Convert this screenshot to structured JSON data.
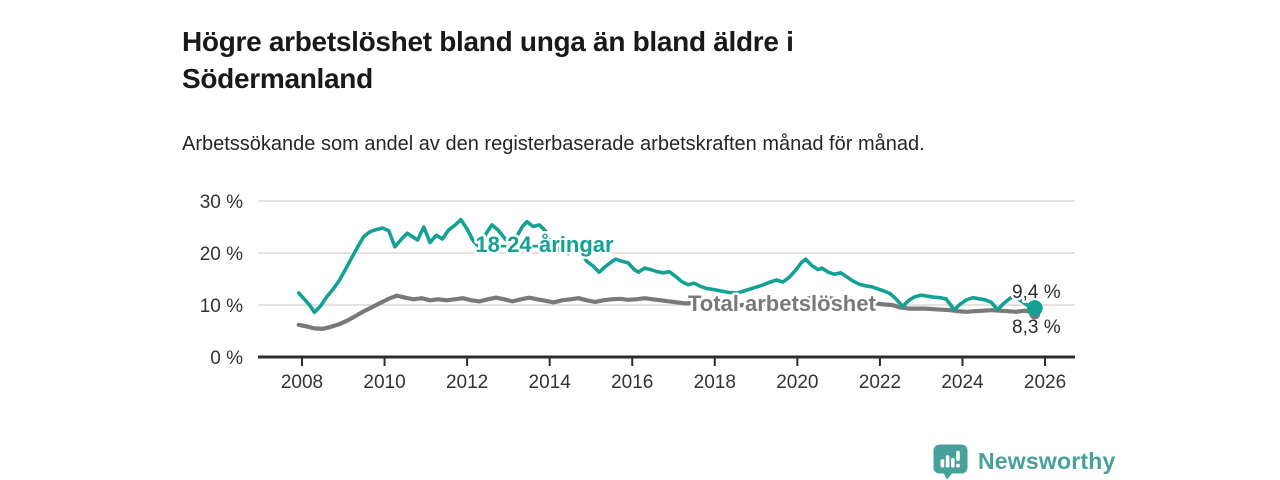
{
  "header": {
    "title": "Högre arbetslöshet bland unga än bland äldre i Södermanland",
    "subtitle": "Arbetssökande som andel av den registerbaserade arbetskraften månad för månad."
  },
  "chart_data": {
    "type": "line",
    "title": "Högre arbetslöshet bland unga än bland äldre i Södermanland",
    "xlabel": "",
    "ylabel": "",
    "grid": "horizontal-only",
    "x_axis": {
      "range": [
        2007.9,
        2026.7
      ],
      "ticks": [
        {
          "v": 2008,
          "label": "2008"
        },
        {
          "v": 2010,
          "label": "2010"
        },
        {
          "v": 2012,
          "label": "2012"
        },
        {
          "v": 2014,
          "label": "2014"
        },
        {
          "v": 2016,
          "label": "2016"
        },
        {
          "v": 2018,
          "label": "2018"
        },
        {
          "v": 2020,
          "label": "2020"
        },
        {
          "v": 2022,
          "label": "2022"
        },
        {
          "v": 2024,
          "label": "2024"
        },
        {
          "v": 2026,
          "label": "2026"
        }
      ]
    },
    "y_axis": {
      "range": [
        0,
        31
      ],
      "ticks": [
        {
          "v": 0,
          "label": "0 %"
        },
        {
          "v": 10,
          "label": "10 %"
        },
        {
          "v": 20,
          "label": "20 %"
        },
        {
          "v": 30,
          "label": "30 %"
        }
      ]
    },
    "series": [
      {
        "id": "18-24",
        "name": "18-24-åringar",
        "color": "#14a195",
        "line_width": 3.6,
        "dot_radius": 8,
        "end_value_label": "9,4 %",
        "points": [
          [
            2007.92,
            12.3
          ],
          [
            2008.05,
            11.2
          ],
          [
            2008.2,
            9.8
          ],
          [
            2008.3,
            8.6
          ],
          [
            2008.45,
            9.8
          ],
          [
            2008.6,
            11.6
          ],
          [
            2008.75,
            13.0
          ],
          [
            2008.9,
            14.7
          ],
          [
            2009.05,
            16.8
          ],
          [
            2009.2,
            19.0
          ],
          [
            2009.35,
            21.2
          ],
          [
            2009.5,
            23.2
          ],
          [
            2009.65,
            24.1
          ],
          [
            2009.8,
            24.5
          ],
          [
            2009.95,
            24.8
          ],
          [
            2010.1,
            24.3
          ],
          [
            2010.25,
            21.2
          ],
          [
            2010.4,
            22.6
          ],
          [
            2010.55,
            23.8
          ],
          [
            2010.7,
            23.0
          ],
          [
            2010.8,
            22.5
          ],
          [
            2010.95,
            25.0
          ],
          [
            2011.1,
            22.0
          ],
          [
            2011.25,
            23.4
          ],
          [
            2011.4,
            22.7
          ],
          [
            2011.55,
            24.4
          ],
          [
            2011.7,
            25.3
          ],
          [
            2011.85,
            26.4
          ],
          [
            2012.0,
            24.6
          ],
          [
            2012.15,
            22.3
          ],
          [
            2012.3,
            21.1
          ],
          [
            2012.45,
            23.6
          ],
          [
            2012.6,
            25.4
          ],
          [
            2012.75,
            24.4
          ],
          [
            2012.9,
            22.9
          ],
          [
            2013.05,
            21.6
          ],
          [
            2013.2,
            23.2
          ],
          [
            2013.35,
            25.2
          ],
          [
            2013.45,
            26.0
          ],
          [
            2013.6,
            25.1
          ],
          [
            2013.75,
            25.4
          ],
          [
            2013.9,
            24.2
          ],
          [
            2014.05,
            21.5
          ],
          [
            2014.15,
            20.1
          ],
          [
            2014.3,
            21.6
          ],
          [
            2014.45,
            19.9
          ],
          [
            2014.6,
            20.9
          ],
          [
            2014.75,
            20.3
          ],
          [
            2014.9,
            18.4
          ],
          [
            2015.05,
            17.5
          ],
          [
            2015.2,
            16.3
          ],
          [
            2015.35,
            17.4
          ],
          [
            2015.5,
            18.3
          ],
          [
            2015.6,
            18.8
          ],
          [
            2015.75,
            18.4
          ],
          [
            2015.9,
            18.1
          ],
          [
            2016.05,
            16.8
          ],
          [
            2016.15,
            16.3
          ],
          [
            2016.3,
            17.1
          ],
          [
            2016.45,
            16.8
          ],
          [
            2016.6,
            16.4
          ],
          [
            2016.75,
            16.2
          ],
          [
            2016.9,
            16.4
          ],
          [
            2017.05,
            15.5
          ],
          [
            2017.2,
            14.5
          ],
          [
            2017.35,
            13.9
          ],
          [
            2017.5,
            14.2
          ],
          [
            2017.65,
            13.6
          ],
          [
            2017.8,
            13.2
          ],
          [
            2017.95,
            13.0
          ],
          [
            2018.15,
            12.7
          ],
          [
            2018.35,
            12.4
          ],
          [
            2018.55,
            12.3
          ],
          [
            2018.75,
            12.8
          ],
          [
            2018.95,
            13.3
          ],
          [
            2019.15,
            13.8
          ],
          [
            2019.3,
            14.3
          ],
          [
            2019.5,
            14.8
          ],
          [
            2019.65,
            14.4
          ],
          [
            2019.8,
            15.3
          ],
          [
            2019.95,
            16.6
          ],
          [
            2020.1,
            18.2
          ],
          [
            2020.2,
            18.8
          ],
          [
            2020.35,
            17.6
          ],
          [
            2020.5,
            16.8
          ],
          [
            2020.6,
            17.1
          ],
          [
            2020.75,
            16.3
          ],
          [
            2020.9,
            15.9
          ],
          [
            2021.05,
            16.2
          ],
          [
            2021.2,
            15.4
          ],
          [
            2021.35,
            14.6
          ],
          [
            2021.5,
            14.0
          ],
          [
            2021.65,
            13.7
          ],
          [
            2021.8,
            13.5
          ],
          [
            2021.95,
            13.1
          ],
          [
            2022.1,
            12.7
          ],
          [
            2022.25,
            12.2
          ],
          [
            2022.4,
            11.1
          ],
          [
            2022.55,
            9.7
          ],
          [
            2022.7,
            10.9
          ],
          [
            2022.85,
            11.6
          ],
          [
            2023.0,
            11.9
          ],
          [
            2023.15,
            11.7
          ],
          [
            2023.3,
            11.5
          ],
          [
            2023.45,
            11.4
          ],
          [
            2023.6,
            11.2
          ],
          [
            2023.8,
            9.1
          ],
          [
            2023.95,
            10.2
          ],
          [
            2024.1,
            11.0
          ],
          [
            2024.25,
            11.4
          ],
          [
            2024.4,
            11.2
          ],
          [
            2024.55,
            11.0
          ],
          [
            2024.7,
            10.5
          ],
          [
            2024.85,
            9.1
          ],
          [
            2025.0,
            10.3
          ],
          [
            2025.15,
            11.3
          ],
          [
            2025.25,
            11.7
          ],
          [
            2025.4,
            10.9
          ],
          [
            2025.55,
            10.1
          ],
          [
            2025.65,
            9.7
          ],
          [
            2025.75,
            9.4
          ]
        ]
      },
      {
        "id": "total",
        "name": "Total arbetslöshet",
        "color": "#797979",
        "line_width": 4.2,
        "dot_radius": 5.5,
        "end_value_label": "8,3 %",
        "points": [
          [
            2007.92,
            6.2
          ],
          [
            2008.1,
            5.9
          ],
          [
            2008.3,
            5.5
          ],
          [
            2008.5,
            5.4
          ],
          [
            2008.7,
            5.8
          ],
          [
            2008.9,
            6.3
          ],
          [
            2009.1,
            7.0
          ],
          [
            2009.3,
            7.9
          ],
          [
            2009.5,
            8.8
          ],
          [
            2009.7,
            9.6
          ],
          [
            2009.9,
            10.4
          ],
          [
            2010.1,
            11.2
          ],
          [
            2010.3,
            11.8
          ],
          [
            2010.5,
            11.4
          ],
          [
            2010.7,
            11.1
          ],
          [
            2010.9,
            11.3
          ],
          [
            2011.1,
            10.9
          ],
          [
            2011.3,
            11.1
          ],
          [
            2011.5,
            10.9
          ],
          [
            2011.7,
            11.1
          ],
          [
            2011.9,
            11.3
          ],
          [
            2012.1,
            10.9
          ],
          [
            2012.3,
            10.7
          ],
          [
            2012.5,
            11.1
          ],
          [
            2012.7,
            11.4
          ],
          [
            2012.9,
            11.1
          ],
          [
            2013.1,
            10.7
          ],
          [
            2013.3,
            11.1
          ],
          [
            2013.5,
            11.4
          ],
          [
            2013.7,
            11.1
          ],
          [
            2013.9,
            10.8
          ],
          [
            2014.1,
            10.5
          ],
          [
            2014.3,
            10.9
          ],
          [
            2014.5,
            11.1
          ],
          [
            2014.7,
            11.3
          ],
          [
            2014.9,
            10.9
          ],
          [
            2015.1,
            10.6
          ],
          [
            2015.3,
            10.9
          ],
          [
            2015.5,
            11.1
          ],
          [
            2015.7,
            11.2
          ],
          [
            2015.9,
            11.0
          ],
          [
            2016.1,
            11.1
          ],
          [
            2016.3,
            11.3
          ],
          [
            2016.5,
            11.1
          ],
          [
            2016.7,
            10.9
          ],
          [
            2016.9,
            10.7
          ],
          [
            2017.1,
            10.5
          ],
          [
            2017.3,
            10.3
          ],
          [
            2017.5,
            10.4
          ],
          [
            2017.7,
            10.4
          ],
          [
            2017.9,
            10.2
          ],
          [
            2018.1,
            10.1
          ],
          [
            2018.3,
            10.0
          ],
          [
            2018.5,
            9.9
          ],
          [
            2018.7,
            10.0
          ],
          [
            2018.9,
            10.1
          ],
          [
            2019.1,
            10.1
          ],
          [
            2019.3,
            10.2
          ],
          [
            2019.5,
            10.3
          ],
          [
            2019.7,
            10.4
          ],
          [
            2019.9,
            10.6
          ],
          [
            2020.1,
            11.0
          ],
          [
            2020.3,
            11.3
          ],
          [
            2020.5,
            11.5
          ],
          [
            2020.7,
            11.4
          ],
          [
            2020.9,
            11.2
          ],
          [
            2021.1,
            11.0
          ],
          [
            2021.3,
            10.8
          ],
          [
            2021.5,
            10.6
          ],
          [
            2021.7,
            10.4
          ],
          [
            2021.9,
            10.3
          ],
          [
            2022.1,
            10.1
          ],
          [
            2022.3,
            10.0
          ],
          [
            2022.5,
            9.5
          ],
          [
            2022.7,
            9.3
          ],
          [
            2022.9,
            9.3
          ],
          [
            2023.1,
            9.3
          ],
          [
            2023.3,
            9.2
          ],
          [
            2023.5,
            9.1
          ],
          [
            2023.7,
            9.0
          ],
          [
            2023.9,
            8.8
          ],
          [
            2024.1,
            8.7
          ],
          [
            2024.3,
            8.8
          ],
          [
            2024.5,
            8.9
          ],
          [
            2024.7,
            9.0
          ],
          [
            2024.9,
            8.9
          ],
          [
            2025.1,
            8.8
          ],
          [
            2025.3,
            8.7
          ],
          [
            2025.5,
            8.9
          ],
          [
            2025.65,
            8.7
          ],
          [
            2025.75,
            8.3
          ]
        ]
      }
    ],
    "annotations": [
      {
        "id": "series-label-18-24",
        "text": "18-24-åringar",
        "x": 2012.2,
        "y": 20.2,
        "color": "#14a195",
        "bold": true,
        "size": 22
      },
      {
        "id": "series-label-total",
        "text": "Total arbetslöshet",
        "x": 2017.35,
        "y": 8.85,
        "color": "#797979",
        "bold": true,
        "size": 22
      },
      {
        "id": "end-value-18-24",
        "text": "9,4 %",
        "x": 2025.2,
        "y": 11.35,
        "color": "#2b2b2b",
        "bold": false,
        "size": 19
      },
      {
        "id": "end-value-total",
        "text": "8,3 %",
        "x": 2025.2,
        "y": 4.6,
        "color": "#2b2b2b",
        "bold": false,
        "size": 19
      }
    ],
    "legend_position": "inline-labels"
  },
  "colors": {
    "accent_teal": "#14a195",
    "series_gray": "#797979",
    "axis": "#2d2d2d",
    "gridline": "#d9d9d9",
    "logo_teal": "#47a09a"
  },
  "footer": {
    "brand": "Newsworthy",
    "logo_icon": "bar-chart-speech-bubble"
  }
}
